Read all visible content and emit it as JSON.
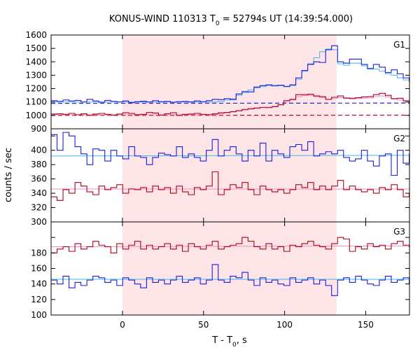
{
  "chart_data": {
    "type": "line",
    "title": "KONUS-WIND 110313 T",
    "title_sub": "0",
    "title_rest": " = 52794s UT (14:39:54.000)",
    "xlabel": "T - T",
    "xlabel_sub": "0",
    "xlabel_rest": ", s",
    "ylabel": "counts / sec",
    "xlim": [
      -44,
      177
    ],
    "xticks": [
      0,
      50,
      100,
      150
    ],
    "shaded_interval": [
      0,
      132
    ],
    "colors": {
      "shade": "#fde4e6",
      "blue": "#1c1ce0",
      "red": "#b0001a",
      "fit_blue": "#45b8e8",
      "fit_red": "#ea8fc8",
      "bg_blue": "#2424d0",
      "bg_red": "#c00020"
    },
    "panels": [
      {
        "name": "G1",
        "ylim": [
          900,
          1600
        ],
        "yticks": [
          900,
          1000,
          1100,
          1200,
          1300,
          1400,
          1500,
          1600
        ],
        "bin_start": -44,
        "bin_width": 3.68,
        "series": [
          {
            "color_key": "blue",
            "values": [
              1110,
              1105,
              1115,
              1108,
              1112,
              1100,
              1120,
              1108,
              1098,
              1112,
              1105,
              1100,
              1108,
              1095,
              1102,
              1106,
              1100,
              1110,
              1102,
              1105,
              1098,
              1102,
              1104,
              1100,
              1108,
              1102,
              1110,
              1120,
              1118,
              1125,
              1118,
              1160,
              1178,
              1175,
              1212,
              1222,
              1228,
              1220,
              1225,
              1215,
              1228,
              1280,
              1335,
              1380,
              1400,
              1395,
              1490,
              1520,
              1400,
              1390,
              1420,
              1420,
              1380,
              1350,
              1380,
              1360,
              1320,
              1340,
              1310,
              1280,
              1260,
              1240,
              1210,
              1180,
              1195,
              1200,
              1170,
              1175,
              1160,
              1130,
              1132,
              1120,
              1100,
              1108,
              1102,
              1110,
              1105,
              1090,
              1108,
              1098,
              1095,
              1115,
              1102,
              1090,
              1098,
              1105,
              1100,
              1108,
              1100,
              1095,
              1100,
              1090,
              1102,
              1098,
              1088,
              1100,
              1095,
              1105,
              1098,
              1095
            ]
          },
          {
            "color_key": "red",
            "values": [
              1010,
              1012,
              1008,
              1015,
              1005,
              1012,
              1000,
              1010,
              1015,
              1008,
              1002,
              1010,
              1020,
              1015,
              1005,
              1008,
              1022,
              1018,
              1002,
              1012,
              1020,
              1000,
              1008,
              1010,
              1015,
              1008,
              1005,
              1012,
              1020,
              1022,
              1028,
              1035,
              1045,
              1050,
              1055,
              1060,
              1058,
              1065,
              1080,
              1110,
              1120,
              1155,
              1155,
              1158,
              1145,
              1140,
              1120,
              1135,
              1145,
              1130,
              1128,
              1132,
              1138,
              1140,
              1155,
              1165,
              1150,
              1125,
              1128,
              1110,
              1090,
              1082,
              1068,
              1050,
              1058,
              1050,
              1045,
              1040,
              1050,
              1025,
              1035,
              1030,
              1015,
              1030,
              1012,
              1020,
              1005,
              1025,
              1028,
              1020,
              1005,
              1012,
              1025,
              1015,
              1010,
              1018,
              1020,
              1008,
              1000,
              1028,
              1010,
              1005,
              1020,
              1008,
              1015,
              1010,
              1018,
              1012,
              1005,
              1010
            ]
          }
        ],
        "fits": [
          {
            "color_key": "fit_blue",
            "values": [
              1100,
              1100,
              1100,
              1100,
              1100,
              1100,
              1100,
              1100,
              1100,
              1100,
              1100,
              1100,
              1100,
              1100,
              1100,
              1100,
              1100,
              1100,
              1100,
              1100,
              1100,
              1100,
              1100,
              1100,
              1100,
              1100,
              1100,
              1100,
              1105,
              1115,
              1125,
              1150,
              1170,
              1190,
              1205,
              1215,
              1222,
              1225,
              1222,
              1218,
              1222,
              1270,
              1330,
              1385,
              1430,
              1475,
              1495,
              1490,
              1385,
              1375,
              1390,
              1390,
              1370,
              1345,
              1345,
              1330,
              1310,
              1300,
              1280,
              1265,
              1245,
              1225,
              1205,
              1190,
              1182,
              1175,
              1160,
              1152,
              1140,
              1125,
              1118,
              1110,
              1102,
              1100,
              1100,
              1100,
              1100,
              1100,
              1100,
              1100,
              1100,
              1100,
              1100,
              1100,
              1100,
              1100,
              1100,
              1100,
              1100,
              1100,
              1100,
              1100,
              1100,
              1100,
              1100,
              1100,
              1100,
              1100,
              1100,
              1100
            ]
          },
          {
            "color_key": "fit_red",
            "values": [
              1005,
              1005,
              1005,
              1005,
              1005,
              1005,
              1005,
              1005,
              1005,
              1005,
              1005,
              1005,
              1005,
              1005,
              1005,
              1005,
              1005,
              1005,
              1005,
              1005,
              1005,
              1005,
              1005,
              1005,
              1005,
              1005,
              1005,
              1008,
              1012,
              1018,
              1025,
              1033,
              1040,
              1046,
              1052,
              1058,
              1062,
              1068,
              1078,
              1100,
              1115,
              1140,
              1148,
              1148,
              1140,
              1132,
              1120,
              1125,
              1132,
              1125,
              1122,
              1125,
              1128,
              1130,
              1140,
              1145,
              1138,
              1122,
              1115,
              1100,
              1085,
              1075,
              1062,
              1052,
              1050,
              1045,
              1040,
              1035,
              1030,
              1022,
              1020,
              1015,
              1010,
              1008,
              1005,
              1005,
              1005,
              1005,
              1005,
              1005,
              1005,
              1005,
              1005,
              1005,
              1005,
              1005,
              1005,
              1005,
              1005,
              1005,
              1005,
              1005,
              1005,
              1005,
              1005,
              1005,
              1005,
              1005,
              1005,
              1005
            ]
          }
        ],
        "backgrounds": [
          {
            "color_key": "bg_blue",
            "x": [
              -44,
              177
            ],
            "y": [
              1090,
              1092
            ]
          },
          {
            "color_key": "bg_red",
            "x": [
              -44,
              177
            ],
            "y": [
              1000,
              1002
            ]
          }
        ]
      },
      {
        "name": "G2",
        "ylim": [
          300,
          430
        ],
        "yticks": [
          300,
          320,
          340,
          360,
          380,
          400,
          420
        ],
        "bin_start": -44,
        "bin_width": 3.68,
        "series": [
          {
            "color_key": "blue",
            "values": [
              422,
              400,
              425,
              420,
              405,
              395,
              380,
              402,
              400,
              385,
              400,
              392,
              388,
              405,
              392,
              390,
              380,
              390,
              396,
              394,
              392,
              405,
              390,
              395,
              390,
              385,
              400,
              415,
              392,
              400,
              405,
              395,
              385,
              400,
              392,
              410,
              385,
              400,
              395,
              390,
              405,
              408,
              400,
              412,
              392,
              395,
              398,
              395,
              400,
              390,
              385,
              388,
              400,
              385,
              378,
              392,
              395,
              365,
              400,
              382,
              395,
              390,
              370,
              380,
              395,
              410,
              400,
              388,
              395,
              385,
              390,
              395,
              392,
              405,
              400,
              412,
              395,
              395,
              390,
              400,
              395,
              405,
              388,
              392,
              398,
              400,
              408,
              392,
              400,
              395,
              385,
              410,
              400,
              392,
              385,
              390,
              398,
              392,
              400,
              395
            ]
          },
          {
            "color_key": "red",
            "values": [
              335,
              330,
              345,
              340,
              355,
              350,
              342,
              338,
              350,
              345,
              348,
              352,
              340,
              346,
              345,
              348,
              342,
              350,
              345,
              348,
              340,
              350,
              342,
              338,
              348,
              345,
              350,
              370,
              338,
              345,
              352,
              348,
              355,
              345,
              338,
              350,
              345,
              342,
              345,
              340,
              345,
              352,
              348,
              355,
              345,
              350,
              345,
              350,
              358,
              345,
              350,
              345,
              342,
              345,
              340,
              348,
              345,
              352,
              345,
              335,
              340,
              330,
              345,
              340,
              350,
              345,
              355,
              345,
              335,
              355,
              348,
              340,
              345,
              350,
              345,
              350,
              342,
              345,
              348,
              345,
              340,
              345,
              350,
              342,
              348,
              345,
              350,
              345,
              332,
              340,
              345,
              345,
              350,
              342,
              348,
              345,
              340,
              345,
              348,
              345
            ]
          }
        ],
        "fits": [
          {
            "color_key": "fit_blue",
            "x": [
              -44,
              177
            ],
            "y": [
              392,
              393
            ]
          },
          {
            "color_key": "fit_red",
            "x": [
              -44,
              177
            ],
            "y": [
              346,
              346
            ]
          }
        ]
      },
      {
        "name": "G3",
        "ylim": [
          100,
          220
        ],
        "yticks": [
          100,
          120,
          140,
          160,
          180,
          200
        ],
        "bin_start": -44,
        "bin_width": 3.68,
        "series": [
          {
            "color_key": "red",
            "values": [
              180,
              185,
              188,
              182,
              192,
              185,
              188,
              195,
              190,
              188,
              180,
              192,
              185,
              190,
              195,
              185,
              190,
              185,
              188,
              192,
              185,
              190,
              182,
              192,
              188,
              185,
              190,
              195,
              185,
              188,
              190,
              192,
              200,
              195,
              188,
              185,
              192,
              185,
              188,
              182,
              190,
              188,
              192,
              195,
              190,
              188,
              185,
              192,
              200,
              198,
              182,
              188,
              185,
              192,
              188,
              190,
              185,
              192,
              195,
              190,
              188,
              192,
              195,
              190,
              188,
              185,
              190,
              188,
              195,
              185,
              192,
              188,
              190,
              185,
              188,
              192,
              195,
              188,
              190,
              185,
              192,
              188,
              190,
              185,
              188,
              192,
              190,
              185,
              188,
              192,
              195,
              185,
              190,
              188,
              192,
              195,
              190,
              198,
              188,
              195
            ]
          },
          {
            "color_key": "blue",
            "values": [
              145,
              140,
              150,
              135,
              142,
              138,
              145,
              150,
              148,
              142,
              145,
              138,
              148,
              145,
              140,
              135,
              148,
              142,
              145,
              140,
              145,
              150,
              142,
              145,
              148,
              140,
              145,
              165,
              145,
              142,
              150,
              148,
              155,
              145,
              138,
              148,
              142,
              145,
              140,
              138,
              148,
              142,
              145,
              148,
              140,
              145,
              138,
              125,
              145,
              148,
              142,
              150,
              145,
              140,
              138,
              145,
              150,
              142,
              145,
              148,
              140,
              145,
              138,
              142,
              150,
              145,
              148,
              142,
              140,
              145,
              150,
              142,
              145,
              148,
              142,
              138,
              145,
              150,
              148,
              142,
              145,
              140,
              135,
              148,
              142,
              145,
              150,
              142,
              145,
              148,
              140,
              145,
              138,
              142,
              148,
              145,
              150,
              142,
              145,
              148
            ]
          }
        ],
        "fits": [
          {
            "color_key": "fit_red",
            "x": [
              -44,
              177
            ],
            "y": [
              188,
              189
            ]
          },
          {
            "color_key": "fit_blue",
            "x": [
              -44,
              177
            ],
            "y": [
              146,
              146
            ]
          }
        ]
      }
    ]
  }
}
